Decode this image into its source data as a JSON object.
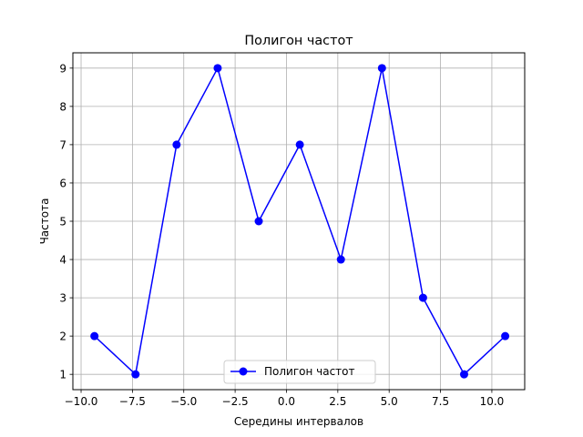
{
  "chart_data": {
    "type": "line",
    "title": "Полигон частот",
    "xlabel": "Середины интервалов",
    "ylabel": "Частота",
    "xlim": [
      -10.4,
      11.6
    ],
    "ylim": [
      0.6,
      9.4
    ],
    "xticks": [
      -10.0,
      -7.5,
      -5.0,
      -2.5,
      0.0,
      2.5,
      5.0,
      7.5,
      10.0
    ],
    "xtick_labels": [
      "−10.0",
      "−7.5",
      "−5.0",
      "−2.5",
      "0.0",
      "2.5",
      "5.0",
      "7.5",
      "10.0"
    ],
    "yticks": [
      1,
      2,
      3,
      4,
      5,
      6,
      7,
      8,
      9
    ],
    "ytick_labels": [
      "1",
      "2",
      "3",
      "4",
      "5",
      "6",
      "7",
      "8",
      "9"
    ],
    "grid": true,
    "legend_position": "bottom-center",
    "series": [
      {
        "name": "Полигон частот",
        "color": "#0000ff",
        "marker": "circle",
        "x": [
          -9.35,
          -7.35,
          -5.35,
          -3.35,
          -1.35,
          0.65,
          2.65,
          4.65,
          6.65,
          8.65,
          10.65
        ],
        "y": [
          2,
          1,
          7,
          9,
          5,
          7,
          4,
          9,
          3,
          1,
          2
        ]
      }
    ]
  }
}
